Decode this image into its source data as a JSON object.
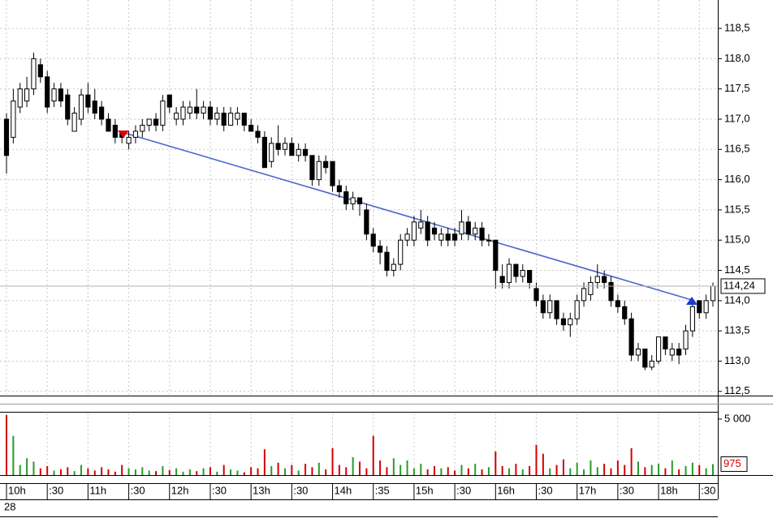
{
  "chart_data": {
    "type": "candlestick",
    "candles": [
      [
        117.0,
        117.1,
        116.1,
        116.4
      ],
      [
        116.7,
        117.5,
        116.6,
        117.3
      ],
      [
        117.2,
        117.6,
        117.1,
        117.5
      ],
      [
        117.3,
        117.7,
        117.2,
        117.5
      ],
      [
        117.5,
        118.1,
        117.4,
        118.0
      ],
      [
        117.9,
        118.0,
        117.6,
        117.7
      ],
      [
        117.7,
        117.8,
        117.1,
        117.2
      ],
      [
        117.3,
        117.6,
        117.2,
        117.5
      ],
      [
        117.5,
        117.6,
        117.2,
        117.3
      ],
      [
        117.4,
        117.5,
        116.9,
        117.0
      ],
      [
        116.8,
        117.2,
        116.8,
        117.1
      ],
      [
        117.0,
        117.5,
        116.9,
        117.4
      ],
      [
        117.4,
        117.6,
        117.1,
        117.2
      ],
      [
        117.3,
        117.5,
        117.0,
        117.1
      ],
      [
        117.2,
        117.3,
        116.9,
        117.0
      ],
      [
        117.0,
        117.1,
        116.8,
        116.8
      ],
      [
        116.9,
        117.0,
        116.6,
        116.7
      ],
      [
        116.8,
        116.8,
        116.6,
        116.7
      ],
      [
        116.6,
        116.8,
        116.5,
        116.7
      ],
      [
        116.7,
        116.9,
        116.6,
        116.8
      ],
      [
        116.8,
        117.0,
        116.7,
        116.9
      ],
      [
        116.9,
        117.0,
        116.8,
        117.0
      ],
      [
        117.0,
        117.1,
        116.8,
        116.9
      ],
      [
        116.9,
        117.4,
        116.8,
        117.3
      ],
      [
        117.4,
        117.4,
        117.1,
        117.2
      ],
      [
        117.0,
        117.2,
        116.9,
        117.1
      ],
      [
        117.0,
        117.3,
        116.9,
        117.2
      ],
      [
        117.1,
        117.3,
        117.0,
        117.2
      ],
      [
        117.2,
        117.5,
        117.0,
        117.1
      ],
      [
        117.1,
        117.3,
        117.0,
        117.2
      ],
      [
        117.2,
        117.3,
        116.9,
        117.0
      ],
      [
        117.0,
        117.2,
        116.9,
        117.1
      ],
      [
        117.1,
        117.2,
        116.8,
        116.9
      ],
      [
        116.9,
        117.2,
        116.9,
        117.1
      ],
      [
        117.0,
        117.2,
        116.9,
        117.1
      ],
      [
        117.1,
        117.1,
        116.8,
        116.9
      ],
      [
        116.9,
        117.0,
        116.8,
        116.8
      ],
      [
        116.8,
        116.9,
        116.6,
        116.7
      ],
      [
        116.7,
        116.8,
        116.2,
        116.2
      ],
      [
        116.3,
        116.7,
        116.2,
        116.6
      ],
      [
        116.6,
        116.9,
        116.4,
        116.5
      ],
      [
        116.5,
        116.7,
        116.4,
        116.6
      ],
      [
        116.6,
        116.7,
        116.4,
        116.4
      ],
      [
        116.4,
        116.6,
        116.3,
        116.5
      ],
      [
        116.5,
        116.6,
        116.3,
        116.4
      ],
      [
        116.4,
        116.4,
        115.9,
        116.0
      ],
      [
        116.0,
        116.4,
        115.9,
        116.3
      ],
      [
        116.3,
        116.4,
        116.1,
        116.2
      ],
      [
        116.3,
        116.3,
        115.8,
        115.9
      ],
      [
        115.9,
        116.0,
        115.7,
        115.8
      ],
      [
        115.8,
        115.9,
        115.5,
        115.6
      ],
      [
        115.6,
        115.8,
        115.5,
        115.7
      ],
      [
        115.7,
        115.7,
        115.4,
        115.6
      ],
      [
        115.5,
        115.6,
        115.0,
        115.1
      ],
      [
        115.1,
        115.2,
        114.8,
        114.9
      ],
      [
        114.9,
        115.0,
        114.6,
        114.8
      ],
      [
        114.8,
        114.9,
        114.4,
        114.5
      ],
      [
        114.5,
        114.7,
        114.4,
        114.6
      ],
      [
        114.6,
        115.1,
        114.5,
        115.0
      ],
      [
        115.0,
        115.2,
        114.9,
        115.1
      ],
      [
        115.0,
        115.4,
        114.9,
        115.3
      ],
      [
        115.2,
        115.5,
        115.1,
        115.3
      ],
      [
        115.3,
        115.4,
        114.9,
        115.0
      ],
      [
        115.2,
        115.3,
        115.0,
        115.1
      ],
      [
        115.0,
        115.2,
        114.9,
        115.1
      ],
      [
        115.1,
        115.2,
        114.9,
        115.0
      ],
      [
        115.1,
        115.2,
        114.9,
        115.0
      ],
      [
        115.1,
        115.5,
        115.0,
        115.3
      ],
      [
        115.3,
        115.4,
        115.0,
        115.1
      ],
      [
        115.1,
        115.3,
        115.0,
        115.2
      ],
      [
        115.2,
        115.3,
        114.9,
        115.0
      ],
      [
        115.0,
        115.1,
        114.9,
        115.0
      ],
      [
        115.0,
        115.0,
        114.2,
        114.5
      ],
      [
        114.4,
        114.6,
        114.2,
        114.3
      ],
      [
        114.3,
        114.7,
        114.2,
        114.6
      ],
      [
        114.6,
        114.6,
        114.3,
        114.4
      ],
      [
        114.4,
        114.6,
        114.3,
        114.5
      ],
      [
        114.5,
        114.5,
        114.2,
        114.3
      ],
      [
        114.2,
        114.3,
        113.9,
        114.0
      ],
      [
        114.0,
        114.1,
        113.7,
        113.8
      ],
      [
        113.8,
        114.1,
        113.7,
        114.0
      ],
      [
        114.0,
        114.0,
        113.6,
        113.7
      ],
      [
        113.7,
        113.8,
        113.5,
        113.6
      ],
      [
        113.6,
        113.8,
        113.4,
        113.7
      ],
      [
        113.7,
        114.1,
        113.6,
        114.0
      ],
      [
        114.0,
        114.3,
        113.9,
        114.2
      ],
      [
        114.1,
        114.4,
        114.0,
        114.3
      ],
      [
        114.3,
        114.6,
        114.2,
        114.4
      ],
      [
        114.4,
        114.5,
        114.2,
        114.3
      ],
      [
        114.3,
        114.4,
        113.9,
        114.0
      ],
      [
        114.0,
        114.1,
        113.8,
        113.9
      ],
      [
        113.9,
        114.0,
        113.6,
        113.7
      ],
      [
        113.7,
        113.8,
        113.0,
        113.1
      ],
      [
        113.1,
        113.3,
        113.0,
        113.2
      ],
      [
        113.2,
        113.2,
        112.85,
        112.9
      ],
      [
        112.9,
        113.1,
        112.85,
        113.0
      ],
      [
        113.0,
        113.4,
        112.95,
        113.4
      ],
      [
        113.4,
        113.4,
        113.1,
        113.2
      ],
      [
        113.1,
        113.3,
        113.0,
        113.2
      ],
      [
        113.2,
        113.3,
        112.95,
        113.1
      ],
      [
        113.2,
        113.6,
        113.1,
        113.5
      ],
      [
        113.5,
        114.0,
        113.4,
        113.9
      ],
      [
        114.0,
        114.0,
        113.7,
        113.8
      ],
      [
        113.8,
        114.1,
        113.7,
        114.0
      ],
      [
        114.0,
        114.3,
        113.9,
        114.24
      ]
    ],
    "volume": [
      5350,
      3500,
      900,
      1500,
      1200,
      600,
      800,
      400,
      500,
      700,
      350,
      900,
      600,
      400,
      700,
      500,
      300,
      900,
      600,
      500,
      700,
      400,
      350,
      800,
      450,
      600,
      300,
      500,
      350,
      600,
      700,
      300,
      900,
      500,
      400,
      250,
      700,
      600,
      2300,
      800,
      1100,
      600,
      900,
      400,
      1000,
      700,
      1100,
      500,
      2400,
      900,
      700,
      1600,
      1200,
      600,
      3500,
      1300,
      700,
      1500,
      900,
      1300,
      600,
      1000,
      500,
      800,
      600,
      700,
      400,
      900,
      600,
      1000,
      500,
      700,
      2100,
      800,
      600,
      1000,
      500,
      800,
      2700,
      1900,
      600,
      900,
      1400,
      600,
      1100,
      500,
      1300,
      700,
      1000,
      600,
      1300,
      900,
      2400,
      1200,
      700,
      900,
      1000,
      600,
      1300,
      500,
      800,
      1100,
      900,
      600,
      975
    ],
    "up_volume_color": "#2a9a2a",
    "down_volume_color": "#d40000",
    "categories": [
      "10h",
      null,
      null,
      null,
      null,
      null,
      ":30",
      null,
      null,
      null,
      null,
      null,
      "11h",
      null,
      null,
      null,
      null,
      null,
      ":30",
      null,
      null,
      null,
      null,
      null,
      "12h",
      null,
      null,
      null,
      null,
      null,
      ":30",
      null,
      null,
      null,
      null,
      null,
      "13h",
      null,
      null,
      null,
      null,
      null,
      ":30",
      null,
      null,
      null,
      null,
      null,
      "14h",
      null,
      null,
      null,
      null,
      null,
      ":35",
      null,
      null,
      null,
      null,
      null,
      "15h",
      null,
      null,
      null,
      null,
      null,
      ":30",
      null,
      null,
      null,
      null,
      null,
      "16h",
      null,
      null,
      null,
      null,
      null,
      ":30",
      null,
      null,
      null,
      null,
      null,
      "17h",
      null,
      null,
      null,
      null,
      null,
      ":30",
      null,
      null,
      null,
      null,
      null,
      "18h",
      null,
      null,
      null,
      null,
      null,
      ":30",
      null,
      null
    ],
    "ylim": [
      112.43,
      118.97
    ],
    "yticks": [
      {
        "value": 112.5,
        "label": "112,5"
      },
      {
        "value": 113.0,
        "label": "113,0"
      },
      {
        "value": 113.5,
        "label": "113,5"
      },
      {
        "value": 114.0,
        "label": "114,0"
      },
      {
        "value": 114.5,
        "label": "114,5"
      },
      {
        "value": 115.0,
        "label": "115,0"
      },
      {
        "value": 115.5,
        "label": "115,5"
      },
      {
        "value": 116.0,
        "label": "116,0"
      },
      {
        "value": 116.5,
        "label": "116,5"
      },
      {
        "value": 117.0,
        "label": "117,0"
      },
      {
        "value": 117.5,
        "label": "117,5"
      },
      {
        "value": 118.0,
        "label": "118,0"
      },
      {
        "value": 118.5,
        "label": "118,5"
      }
    ],
    "volume_ylim": [
      0,
      5500
    ],
    "volume_ticks": [
      {
        "value": 5000,
        "label": "5 000"
      }
    ],
    "last_price_label": "114,24",
    "date_label": "28",
    "grid": true
  }
}
